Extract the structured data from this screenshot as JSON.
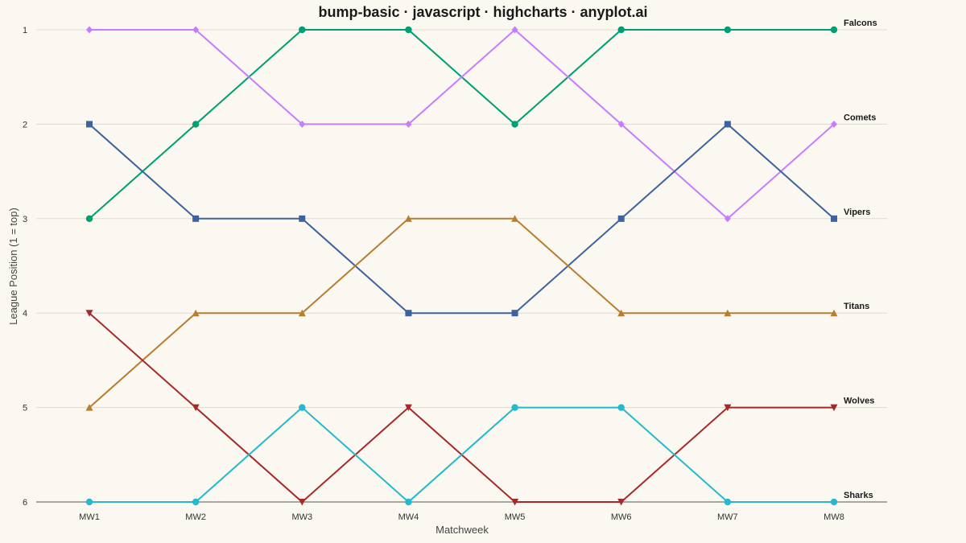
{
  "chart_data": {
    "type": "line",
    "title": "bump-basic · javascript · highcharts · anyplot.ai",
    "xlabel": "Matchweek",
    "ylabel": "League Position (1 = top)",
    "categories": [
      "MW1",
      "MW2",
      "MW3",
      "MW4",
      "MW5",
      "MW6",
      "MW7",
      "MW8"
    ],
    "ylim": [
      1,
      6
    ],
    "y_reversed": true,
    "y_ticks": [
      "1",
      "2",
      "3",
      "4",
      "5",
      "6"
    ],
    "grid": true,
    "legend": "end-labels-right",
    "series": [
      {
        "name": "Falcons",
        "color": "#009e73",
        "marker": "circle",
        "values": [
          3,
          2,
          1,
          1,
          2,
          1,
          1,
          1
        ]
      },
      {
        "name": "Comets",
        "color": "#c77cff",
        "marker": "diamond",
        "values": [
          1,
          1,
          2,
          2,
          1,
          2,
          3,
          2
        ]
      },
      {
        "name": "Vipers",
        "color": "#3d62a0",
        "marker": "square",
        "values": [
          2,
          3,
          3,
          4,
          4,
          3,
          2,
          3
        ]
      },
      {
        "name": "Titans",
        "color": "#b97d2f",
        "marker": "triangle",
        "values": [
          5,
          4,
          4,
          3,
          3,
          4,
          4,
          4
        ]
      },
      {
        "name": "Wolves",
        "color": "#a8282a",
        "marker": "triangle-down",
        "values": [
          4,
          5,
          6,
          5,
          6,
          6,
          5,
          5
        ]
      },
      {
        "name": "Sharks",
        "color": "#26b8cf",
        "marker": "circle",
        "values": [
          6,
          6,
          5,
          6,
          5,
          5,
          6,
          6
        ]
      }
    ]
  }
}
